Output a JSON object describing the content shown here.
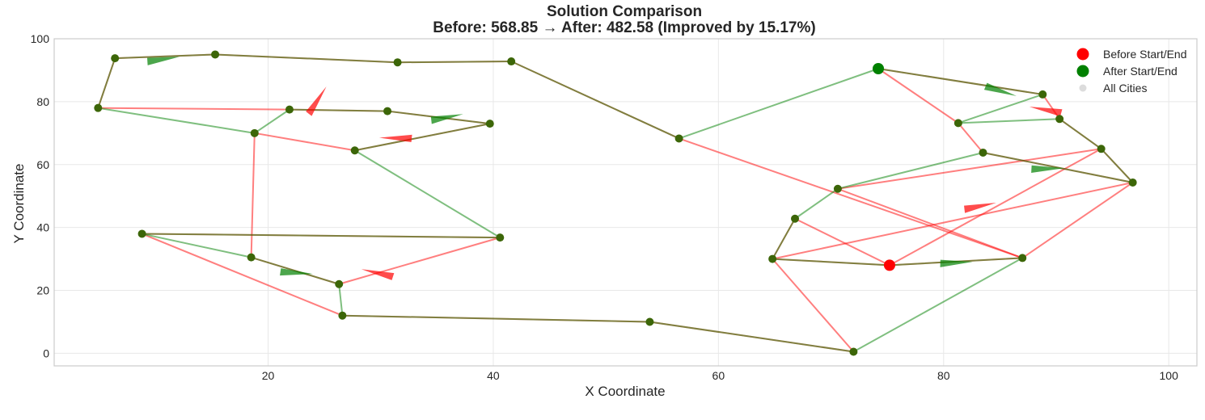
{
  "chart_data": {
    "type": "line",
    "title": "Solution Comparison",
    "subtitle": "Before: 568.85 → After: 482.58 (Improved by 15.17%)",
    "xlabel": "X Coordinate",
    "ylabel": "Y Coordinate",
    "xlim": [
      1,
      102.5
    ],
    "ylim": [
      -4,
      100
    ],
    "xticks": [
      20,
      40,
      60,
      80,
      100
    ],
    "yticks": [
      0,
      20,
      40,
      60,
      80,
      100
    ],
    "grid": true,
    "legend_position": "top-right",
    "legend": [
      {
        "label": "Before Start/End",
        "color": "#ff0000",
        "marker": "circle"
      },
      {
        "label": "After Start/End",
        "color": "#008000",
        "marker": "circle"
      },
      {
        "label": "All Cities",
        "color": "#d3d3d3",
        "marker": "circle"
      }
    ],
    "colors": {
      "before_route": "#ff0000",
      "after_route": "#008000",
      "city": "#3c6608",
      "before_start": "#ff0000",
      "after_start": "#008000"
    },
    "cities": [
      {
        "x": 75.2,
        "y": 28.0
      },
      {
        "x": 87.0,
        "y": 30.3
      },
      {
        "x": 72.0,
        "y": 0.5
      },
      {
        "x": 64.8,
        "y": 30.0
      },
      {
        "x": 66.8,
        "y": 42.8
      },
      {
        "x": 70.6,
        "y": 52.3
      },
      {
        "x": 74.2,
        "y": 90.5
      },
      {
        "x": 83.5,
        "y": 63.8
      },
      {
        "x": 81.3,
        "y": 73.2
      },
      {
        "x": 88.8,
        "y": 82.3
      },
      {
        "x": 90.3,
        "y": 74.5
      },
      {
        "x": 94.0,
        "y": 65.0
      },
      {
        "x": 96.8,
        "y": 54.3
      },
      {
        "x": 56.5,
        "y": 68.3
      },
      {
        "x": 41.6,
        "y": 92.8
      },
      {
        "x": 31.5,
        "y": 92.5
      },
      {
        "x": 15.3,
        "y": 95.0
      },
      {
        "x": 6.4,
        "y": 93.8
      },
      {
        "x": 4.9,
        "y": 78.0
      },
      {
        "x": 18.8,
        "y": 70.0
      },
      {
        "x": 21.9,
        "y": 77.5
      },
      {
        "x": 30.6,
        "y": 77.0
      },
      {
        "x": 39.7,
        "y": 73.0
      },
      {
        "x": 27.7,
        "y": 64.5
      },
      {
        "x": 40.6,
        "y": 36.8
      },
      {
        "x": 8.8,
        "y": 38.0
      },
      {
        "x": 18.5,
        "y": 30.5
      },
      {
        "x": 26.3,
        "y": 22.0
      },
      {
        "x": 26.6,
        "y": 12.0
      },
      {
        "x": 53.9,
        "y": 10.0
      }
    ],
    "series": [
      {
        "name": "Before",
        "color": "#ff0000",
        "opacity": 0.5,
        "start_index": 0,
        "route": [
          0,
          3,
          12,
          11,
          5,
          1,
          13,
          14,
          15,
          16,
          17,
          18,
          20,
          21,
          22,
          23,
          19,
          26,
          27,
          24,
          25,
          28,
          29,
          2,
          3,
          4,
          0,
          1,
          12,
          7,
          8,
          6,
          9,
          10,
          11,
          0
        ]
      },
      {
        "name": "After",
        "color": "#008000",
        "opacity": 0.5,
        "start_index": 6,
        "route": [
          6,
          9,
          8,
          10,
          11,
          12,
          7,
          5,
          4,
          3,
          0,
          1,
          2,
          29,
          28,
          27,
          26,
          25,
          24,
          23,
          22,
          21,
          20,
          19,
          18,
          17,
          16,
          15,
          14,
          13,
          6
        ]
      }
    ],
    "arrows": [
      {
        "series": "Before",
        "x1": 21.0,
        "y1": 65.5,
        "x2": 27.6,
        "y2": 96.0
      },
      {
        "series": "Before",
        "x1": 32.6,
        "y1": 67.5,
        "x2": 30.0,
        "y2": 68.5
      },
      {
        "series": "Before",
        "x1": 30.8,
        "y1": 23.8,
        "x2": 28.5,
        "y2": 26.5
      },
      {
        "series": "Before",
        "x1": 81.5,
        "y1": 46.5,
        "x2": 85.0,
        "y2": 48.0
      },
      {
        "series": "Before",
        "x1": 89.5,
        "y1": 76.5,
        "x2": 88.5,
        "y2": 77.5
      },
      {
        "series": "After",
        "x1": 8.8,
        "y1": 93.5,
        "x2": 12.6,
        "y2": 94.4
      },
      {
        "series": "After",
        "x1": 34.6,
        "y1": 75.0,
        "x2": 37.2,
        "y2": 76.0
      },
      {
        "series": "After",
        "x1": 21.6,
        "y1": 26.5,
        "x2": 23.5,
        "y2": 25.5
      },
      {
        "series": "After",
        "x1": 84.3,
        "y1": 85.0,
        "x2": 86.0,
        "y2": 82.5
      },
      {
        "series": "After",
        "x1": 79.0,
        "y1": 29.5,
        "x2": 83.3,
        "y2": 29.0
      },
      {
        "series": "After",
        "x1": 88.5,
        "y1": 59.3,
        "x2": 90.0,
        "y2": 59.0
      }
    ]
  }
}
